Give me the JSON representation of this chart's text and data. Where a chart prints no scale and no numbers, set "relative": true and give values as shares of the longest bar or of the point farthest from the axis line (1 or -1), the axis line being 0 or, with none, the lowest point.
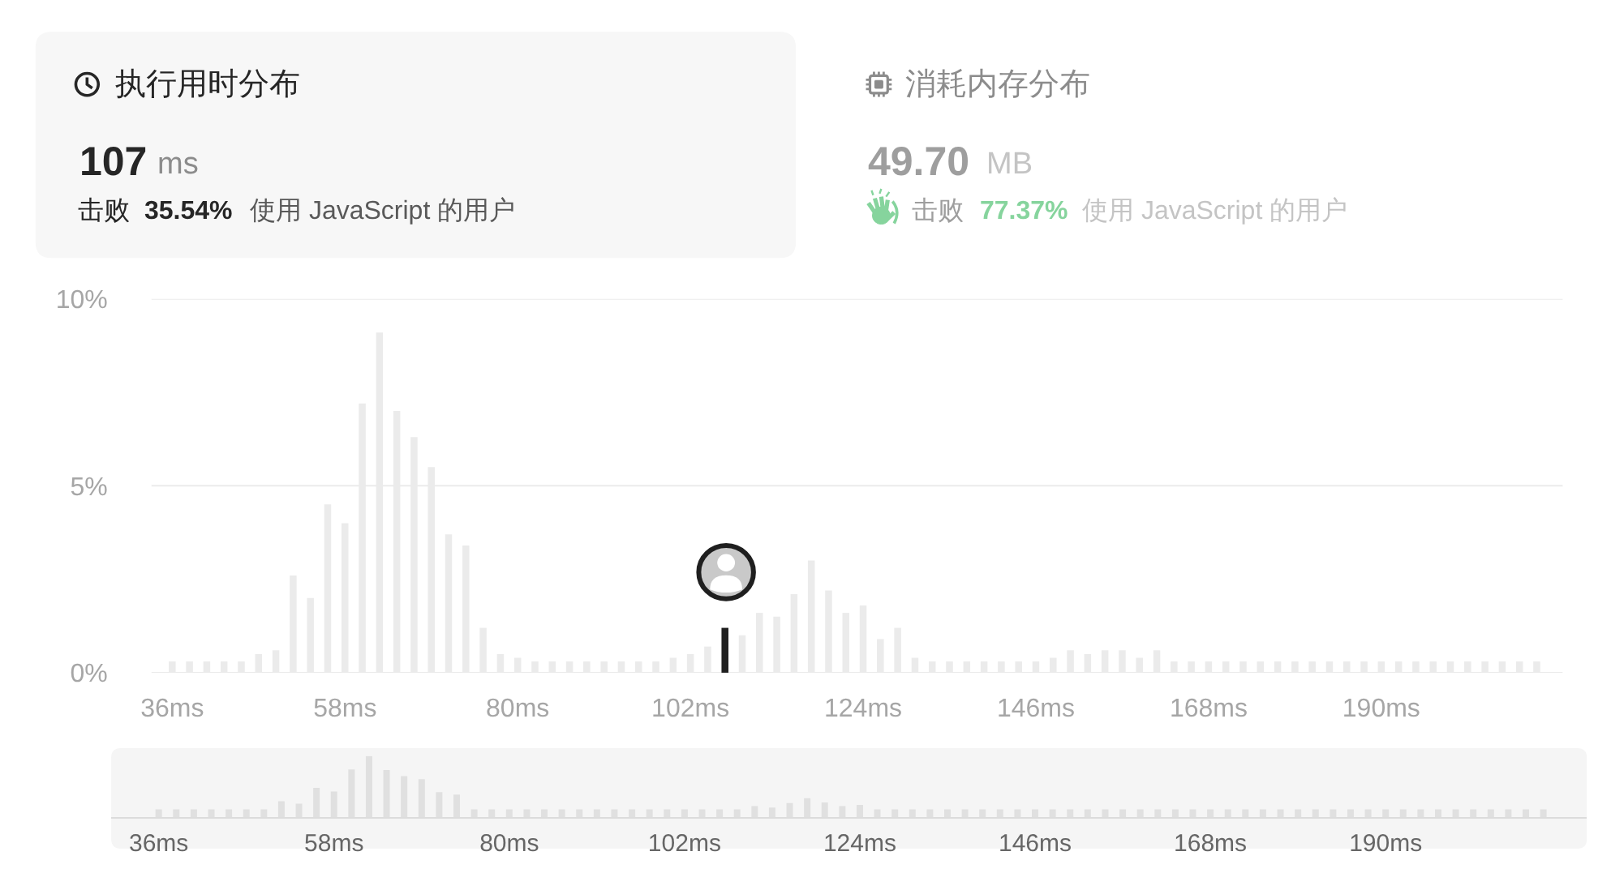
{
  "chart_data": [
    {
      "type": "other",
      "title": "执行用时分布",
      "annotations": [
        "107",
        "ms",
        "击败",
        "35.54%",
        "使用 JavaScript 的用户"
      ],
      "color": "#262626"
    },
    {
      "type": "other",
      "title": "消耗内存分布",
      "annotations": [
        "49.70",
        "MB",
        "击败",
        "77.37%",
        "使用 JavaScript 的用户"
      ],
      "color": "#86d49d"
    },
    {
      "type": "bar",
      "categories": [
        "36ms",
        null,
        null,
        null,
        null,
        null,
        null,
        null,
        null,
        null,
        "58ms",
        null,
        null,
        null,
        null,
        null,
        null,
        null,
        null,
        null,
        "80ms",
        null,
        null,
        null,
        null,
        null,
        null,
        null,
        null,
        null,
        "102ms",
        null,
        null,
        null,
        null,
        null,
        null,
        null,
        null,
        null,
        "124ms",
        null,
        null,
        null,
        null,
        null,
        null,
        null,
        null,
        null,
        "146ms",
        null,
        null,
        null,
        null,
        null,
        null,
        null,
        null,
        null,
        "168ms",
        null,
        null,
        null,
        null,
        null,
        null,
        null,
        null,
        null,
        "190ms",
        null,
        null,
        null,
        null,
        null,
        null,
        null,
        null,
        null
      ],
      "values": [
        0.3,
        0.3,
        0.3,
        0.3,
        0.3,
        0.5,
        0.6,
        2.6,
        2.0,
        4.5,
        4.0,
        7.2,
        9.1,
        7.0,
        6.3,
        5.5,
        3.7,
        3.4,
        1.2,
        0.5,
        0.4,
        0.3,
        0.3,
        0.3,
        0.3,
        0.3,
        0.3,
        0.3,
        0.3,
        0.4,
        0.5,
        0.7,
        1.2,
        1.0,
        1.6,
        1.5,
        2.1,
        3.0,
        2.2,
        1.6,
        1.8,
        0.9,
        1.2,
        0.4,
        0.3,
        0.3,
        0.3,
        0.3,
        0.3,
        0.3,
        0.3,
        0.4,
        0.6,
        0.5,
        0.6,
        0.6,
        0.4,
        0.6,
        0.3,
        0.3,
        0.3,
        0.3,
        0.3,
        0.3,
        0.3,
        0.3,
        0.3,
        0.3,
        0.3,
        0.3,
        0.3,
        0.3,
        0.3,
        0.3,
        0.3,
        0.3,
        0.3,
        0.3,
        0.3,
        0.3
      ],
      "colors": [
        "#ebebeb",
        "#ebebeb",
        "#ebebeb",
        "#ebebeb",
        "#ebebeb",
        "#ebebeb",
        "#ebebeb",
        "#ebebeb",
        "#ebebeb",
        "#ebebeb",
        "#ebebeb",
        "#ebebeb",
        "#ebebeb",
        "#ebebeb",
        "#ebebeb",
        "#ebebeb",
        "#ebebeb",
        "#ebebeb",
        "#ebebeb",
        "#ebebeb",
        "#ebebeb",
        "#ebebeb",
        "#ebebeb",
        "#ebebeb",
        "#ebebeb",
        "#ebebeb",
        "#ebebeb",
        "#ebebeb",
        "#ebebeb",
        "#ebebeb",
        "#ebebeb",
        "#ebebeb",
        "#1f1f1f",
        "#ebebeb",
        "#ebebeb",
        "#ebebeb",
        "#ebebeb",
        "#ebebeb",
        "#ebebeb",
        "#ebebeb",
        "#ebebeb",
        "#ebebeb",
        "#ebebeb",
        "#ebebeb",
        "#ebebeb",
        "#ebebeb",
        "#ebebeb",
        "#ebebeb",
        "#ebebeb",
        "#ebebeb",
        "#ebebeb",
        "#ebebeb",
        "#ebebeb",
        "#ebebeb",
        "#ebebeb",
        "#ebebeb",
        "#ebebeb",
        "#ebebeb",
        "#ebebeb",
        "#ebebeb",
        "#ebebeb",
        "#ebebeb",
        "#ebebeb",
        "#ebebeb",
        "#ebebeb",
        "#ebebeb",
        "#ebebeb",
        "#ebebeb",
        "#ebebeb",
        "#ebebeb",
        "#ebebeb",
        "#ebebeb",
        "#ebebeb",
        "#ebebeb",
        "#ebebeb",
        "#ebebeb",
        "#ebebeb",
        "#ebebeb",
        "#ebebeb",
        "#ebebeb"
      ],
      "ylim": [
        0,
        10
      ],
      "yticks": [
        {
          "value": 0,
          "label": "0%"
        },
        {
          "value": 5,
          "label": "5%"
        },
        {
          "value": 10,
          "label": "10%"
        }
      ],
      "grid": "y"
    },
    {
      "type": "bar",
      "relative": true,
      "categories": [
        "36ms",
        null,
        null,
        null,
        null,
        null,
        null,
        null,
        null,
        null,
        "58ms",
        null,
        null,
        null,
        null,
        null,
        null,
        null,
        null,
        null,
        "80ms",
        null,
        null,
        null,
        null,
        null,
        null,
        null,
        null,
        null,
        "102ms",
        null,
        null,
        null,
        null,
        null,
        null,
        null,
        null,
        null,
        "124ms",
        null,
        null,
        null,
        null,
        null,
        null,
        null,
        null,
        null,
        "146ms",
        null,
        null,
        null,
        null,
        null,
        null,
        null,
        null,
        null,
        "168ms",
        null,
        null,
        null,
        null,
        null,
        null,
        null,
        null,
        null,
        "190ms",
        null,
        null,
        null,
        null,
        null,
        null,
        null,
        null,
        null
      ],
      "values": [
        0.13,
        0.13,
        0.13,
        0.13,
        0.13,
        0.13,
        0.13,
        0.26,
        0.22,
        0.48,
        0.42,
        0.78,
        1,
        0.77,
        0.67,
        0.62,
        0.41,
        0.37,
        0.13,
        0.13,
        0.13,
        0.13,
        0.13,
        0.13,
        0.13,
        0.13,
        0.13,
        0.13,
        0.13,
        0.13,
        0.13,
        0.13,
        0.13,
        0.13,
        0.18,
        0.16,
        0.23,
        0.31,
        0.24,
        0.18,
        0.2,
        0.13,
        0.13,
        0.13,
        0.13,
        0.13,
        0.13,
        0.13,
        0.13,
        0.13,
        0.13,
        0.13,
        0.13,
        0.13,
        0.13,
        0.13,
        0.13,
        0.13,
        0.13,
        0.13,
        0.13,
        0.13,
        0.13,
        0.13,
        0.13,
        0.13,
        0.13,
        0.13,
        0.13,
        0.13,
        0.13,
        0.13,
        0.13,
        0.13,
        0.13,
        0.13,
        0.13,
        0.13,
        0.13,
        0.13
      ],
      "color": "#e0e0e0"
    }
  ]
}
